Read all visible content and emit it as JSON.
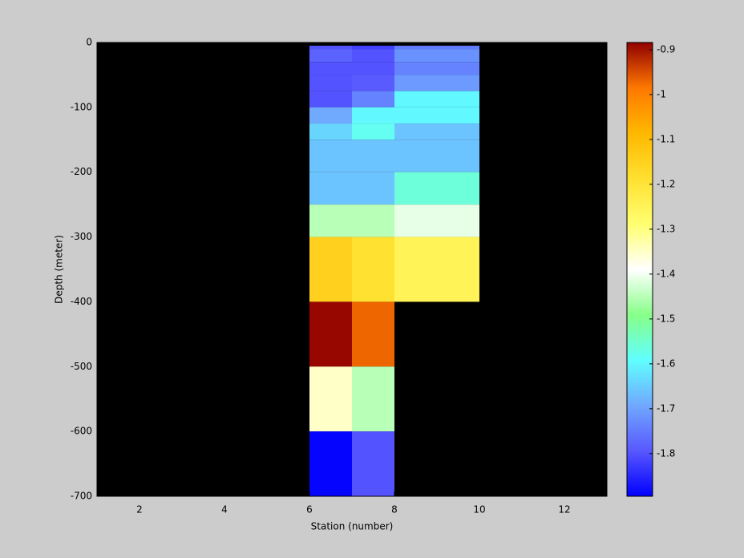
{
  "chart_data": {
    "type": "heatmap",
    "xlabel": "Station (number)",
    "ylabel": "Depth (meter)",
    "xlim": [
      1,
      13
    ],
    "xticks": [
      2,
      4,
      6,
      8,
      10,
      12
    ],
    "ylim": [
      -700,
      0
    ],
    "yticks": [
      -700,
      -600,
      -500,
      -400,
      -300,
      -200,
      -100,
      0
    ],
    "xbins": [
      6,
      7,
      8,
      9,
      10
    ],
    "ybins": [
      -5,
      -10,
      -30,
      -50,
      -75,
      -100,
      -125,
      -150,
      -200,
      -250,
      -300,
      -400,
      -500,
      -600,
      -700
    ],
    "values": [
      [
        -1.8,
        -1.82,
        -1.75,
        -1.75
      ],
      [
        -1.78,
        -1.8,
        -1.72,
        -1.72
      ],
      [
        -1.8,
        -1.8,
        -1.74,
        -1.74
      ],
      [
        -1.8,
        -1.79,
        -1.71,
        -1.71
      ],
      [
        -1.8,
        -1.74,
        -1.6,
        -1.6
      ],
      [
        -1.69,
        -1.6,
        -1.6,
        -1.6
      ],
      [
        -1.64,
        -1.58,
        -1.66,
        -1.66
      ],
      [
        -1.66,
        -1.66,
        -1.66,
        -1.66
      ],
      [
        -1.66,
        -1.66,
        -1.56,
        -1.56
      ],
      [
        -1.45,
        -1.45,
        -1.41,
        -1.41
      ],
      [
        -1.15,
        -1.19,
        -1.25,
        -1.25
      ],
      [
        -0.89,
        -0.97,
        null,
        null
      ],
      [
        -1.35,
        -1.45,
        null,
        null
      ],
      [
        -1.89,
        -1.8,
        null,
        null
      ]
    ],
    "background": "#000000",
    "clim": [
      -1.895,
      -0.884
    ],
    "colormap": [
      "#0000ff",
      "#5858ff",
      "#70a8ff",
      "#60ffff",
      "#88ff88",
      "#ffffff",
      "#ffff70",
      "#ffe030",
      "#ffb800",
      "#ff7800",
      "#900000"
    ],
    "colorbar_ticks": [
      -1.8,
      -1.7,
      -1.6,
      -1.5,
      -1.4,
      -1.3,
      -1.2,
      -1.1,
      -1,
      -0.9
    ]
  }
}
